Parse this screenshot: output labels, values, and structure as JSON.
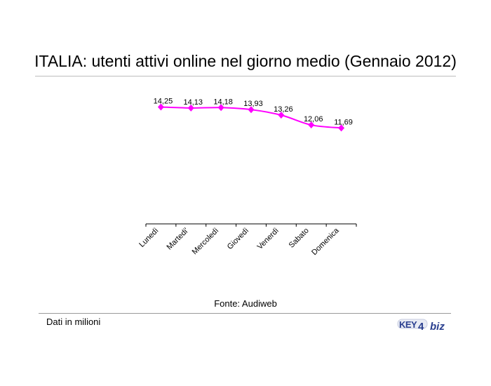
{
  "header": {
    "title": "ITALIA: utenti attivi online nel giorno medio (Gennaio 2012)"
  },
  "footer": {
    "source": "Fonte: Audiweb",
    "note": "Dati in milioni",
    "logo_text": "KEY4biz"
  },
  "colors": {
    "series": "#ff00ff",
    "axis": "#000000",
    "rule": "#bdbdbd",
    "logo": "#2a3f8f"
  },
  "chart_data": {
    "type": "line",
    "title": "ITALIA: utenti attivi online nel giorno medio (Gennaio 2012)",
    "xlabel": "",
    "ylabel": "",
    "categories": [
      "Lunedì",
      "Martedi'",
      "Mercoledì",
      "Giovedì",
      "Venerdì",
      "Sabato",
      "Domenica"
    ],
    "series": [
      {
        "values": [
          14.25,
          14.13,
          14.18,
          13.93,
          13.26,
          12.06,
          11.69
        ],
        "labels": [
          "14,25",
          "14,13",
          "14,18",
          "13,93",
          "13,26",
          "12,06",
          "11,69"
        ]
      }
    ],
    "ylim": [
      0,
      16
    ],
    "y_axis_visible": false,
    "grid": false,
    "legend": "none",
    "marker": "diamond",
    "line": "smoothed"
  }
}
